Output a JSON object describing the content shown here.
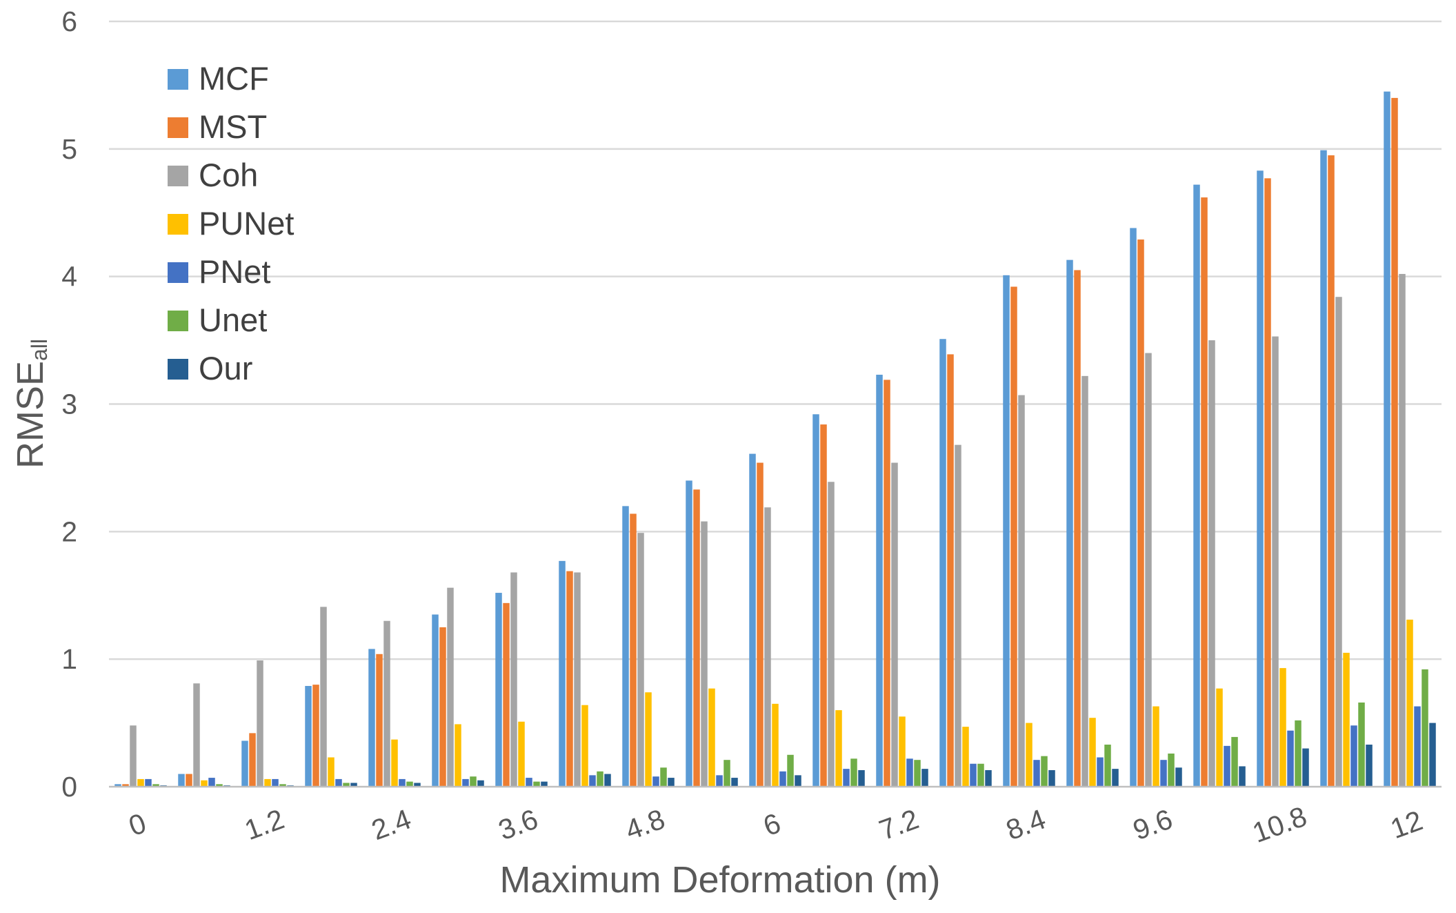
{
  "chart_data": {
    "type": "bar",
    "title": "",
    "xlabel": "Maximum Deformation (m)",
    "ylabel_main": "RMSE",
    "ylabel_sub": "all",
    "ylim": [
      0,
      6
    ],
    "y_ticks": [
      "0",
      "1",
      "2",
      "3",
      "4",
      "5",
      "6"
    ],
    "grid": true,
    "legend_position": "top-left",
    "categories": [
      "0",
      "0.6",
      "1.2",
      "1.8",
      "2.4",
      "3",
      "3.6",
      "4.2",
      "4.8",
      "5.4",
      "6",
      "6.6",
      "7.2",
      "7.8",
      "8.4",
      "9",
      "9.6",
      "10.2",
      "10.8",
      "11.4",
      "12"
    ],
    "x_tick_labels": [
      "0",
      "",
      "1.2",
      "",
      "2.4",
      "",
      "3.6",
      "",
      "4.8",
      "",
      "6",
      "",
      "7.2",
      "",
      "8.4",
      "",
      "9.6",
      "",
      "10.8",
      "",
      "12"
    ],
    "series": [
      {
        "name": "MCF",
        "color": "#5b9bd5",
        "values": [
          0.02,
          0.1,
          0.36,
          0.79,
          1.08,
          1.35,
          1.52,
          1.77,
          2.2,
          2.4,
          2.61,
          2.92,
          3.23,
          3.51,
          4.01,
          4.13,
          4.38,
          4.72,
          4.83,
          4.99,
          5.45
        ]
      },
      {
        "name": "MST",
        "color": "#ed7d31",
        "values": [
          0.02,
          0.1,
          0.42,
          0.8,
          1.04,
          1.25,
          1.44,
          1.69,
          2.14,
          2.33,
          2.54,
          2.84,
          3.19,
          3.39,
          3.92,
          4.05,
          4.29,
          4.62,
          4.77,
          4.95,
          5.4
        ]
      },
      {
        "name": "Coh",
        "color": "#a5a5a5",
        "values": [
          0.48,
          0.81,
          0.99,
          1.41,
          1.3,
          1.56,
          1.68,
          1.68,
          1.99,
          2.08,
          2.19,
          2.39,
          2.54,
          2.68,
          3.07,
          3.22,
          3.4,
          3.5,
          3.53,
          3.84,
          4.02
        ]
      },
      {
        "name": "PUNet",
        "color": "#ffc000",
        "values": [
          0.06,
          0.05,
          0.06,
          0.23,
          0.37,
          0.49,
          0.51,
          0.64,
          0.74,
          0.77,
          0.65,
          0.6,
          0.55,
          0.47,
          0.5,
          0.54,
          0.63,
          0.77,
          0.93,
          1.05,
          1.31
        ]
      },
      {
        "name": "PNet",
        "color": "#4472c4",
        "values": [
          0.06,
          0.07,
          0.06,
          0.06,
          0.06,
          0.06,
          0.07,
          0.09,
          0.08,
          0.09,
          0.12,
          0.14,
          0.22,
          0.18,
          0.21,
          0.23,
          0.21,
          0.32,
          0.44,
          0.48,
          0.63
        ]
      },
      {
        "name": "Unet",
        "color": "#70ad47",
        "values": [
          0.02,
          0.02,
          0.02,
          0.03,
          0.04,
          0.08,
          0.04,
          0.12,
          0.15,
          0.21,
          0.25,
          0.22,
          0.21,
          0.18,
          0.24,
          0.33,
          0.26,
          0.39,
          0.52,
          0.66,
          0.92
        ]
      },
      {
        "name": "Our",
        "color": "#255e91",
        "values": [
          0.01,
          0.01,
          0.01,
          0.03,
          0.03,
          0.05,
          0.04,
          0.1,
          0.07,
          0.07,
          0.09,
          0.13,
          0.14,
          0.13,
          0.13,
          0.14,
          0.15,
          0.16,
          0.3,
          0.33,
          0.5
        ]
      }
    ]
  }
}
